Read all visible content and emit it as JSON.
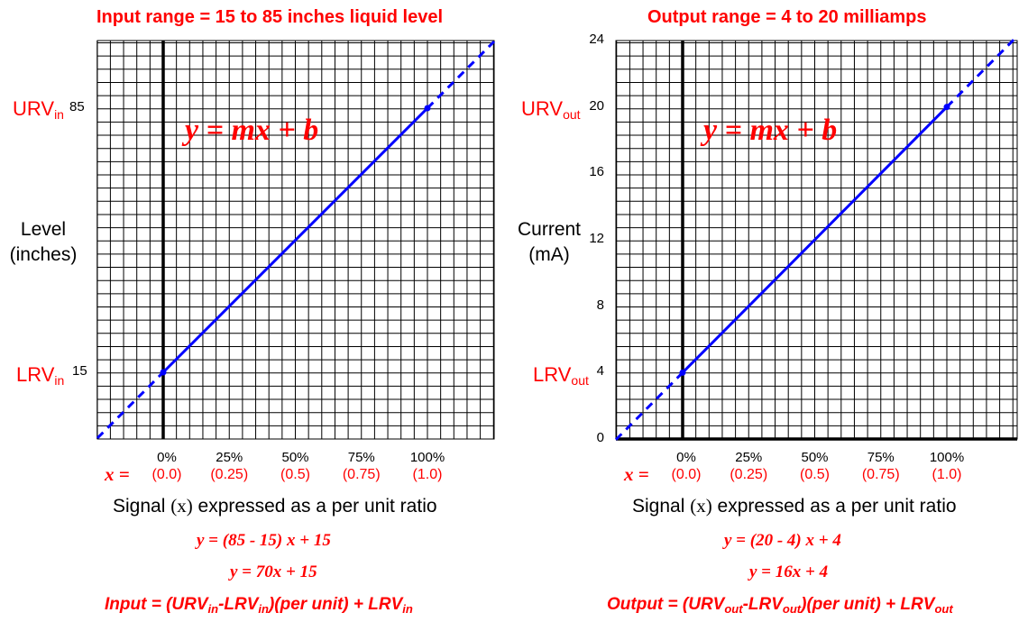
{
  "left": {
    "title": "Input range = 15 to 85 inches liquid level",
    "urv_main": "URV",
    "urv_sub": "in",
    "urv_value": "85",
    "lrv_main": "LRV",
    "lrv_sub": "in",
    "lrv_value": "15",
    "ylabel_line1": "Level",
    "ylabel_line2": "(inches)",
    "equation": "y = mx + b",
    "xeq": "x =",
    "percent_labels": [
      "0%",
      "25%",
      "50%",
      "75%",
      "100%"
    ],
    "decimal_labels": [
      "(0.0)",
      "(0.25)",
      "(0.5)",
      "(0.75)",
      "(1.0)"
    ],
    "signal_pre": "Signal ",
    "signal_x": "(x)",
    "signal_post": " expressed as a per unit ratio",
    "eq_line1": "y = (85 - 15) x  +  15",
    "eq_line2": "y = 70x + 15",
    "formula_a": "Input = (URV",
    "formula_b": "in",
    "formula_c": "-LRV",
    "formula_d": "in",
    "formula_e": ")(per unit) + LRV",
    "formula_f": "in"
  },
  "right": {
    "title": "Output range = 4 to 20 milliamps",
    "urv_main": "URV",
    "urv_sub": "out",
    "lrv_main": "LRV",
    "lrv_sub": "out",
    "ytick_labels": [
      "24",
      "20",
      "16",
      "12",
      "8",
      "4",
      "0"
    ],
    "ylabel_line1": "Current",
    "ylabel_line2": "(mA)",
    "equation": "y = mx + b",
    "xeq": "x =",
    "percent_labels": [
      "0%",
      "25%",
      "50%",
      "75%",
      "100%"
    ],
    "decimal_labels": [
      "(0.0)",
      "(0.25)",
      "(0.5)",
      "(0.75)",
      "(1.0)"
    ],
    "signal_pre": "Signal ",
    "signal_x": "(x)",
    "signal_post": " expressed as a per unit ratio",
    "eq_line1": "y = (20 - 4) x  +  4",
    "eq_line2": "y = 16x + 4",
    "formula_a": "Output = (URV",
    "formula_b": "out",
    "formula_c": "-LRV",
    "formula_d": "out",
    "formula_e": ")(per unit) + LRV",
    "formula_f": "out"
  },
  "chart_data": [
    {
      "type": "line",
      "title": "Input range = 15 to 85 inches liquid level",
      "xlabel": "Signal (x) expressed as a per unit ratio",
      "ylabel": "Level (inches)",
      "xticks": [
        0,
        0.25,
        0.5,
        0.75,
        1.0
      ],
      "yticks": [
        15,
        85
      ],
      "series": [
        {
          "x": [
            0,
            1
          ],
          "y": [
            15,
            85
          ]
        }
      ],
      "extrapolated_dashed": true,
      "line_color": "#0000ff",
      "grid": true
    },
    {
      "type": "line",
      "title": "Output range = 4 to 20 milliamps",
      "xlabel": "Signal (x) expressed as a per unit ratio",
      "ylabel": "Current (mA)",
      "xticks": [
        0,
        0.25,
        0.5,
        0.75,
        1.0
      ],
      "yticks": [
        0,
        4,
        8,
        12,
        16,
        20,
        24
      ],
      "ylim": [
        0,
        24
      ],
      "series": [
        {
          "x": [
            0,
            1
          ],
          "y": [
            4,
            20
          ]
        }
      ],
      "extrapolated_dashed": true,
      "line_color": "#0000ff",
      "grid": true
    }
  ]
}
